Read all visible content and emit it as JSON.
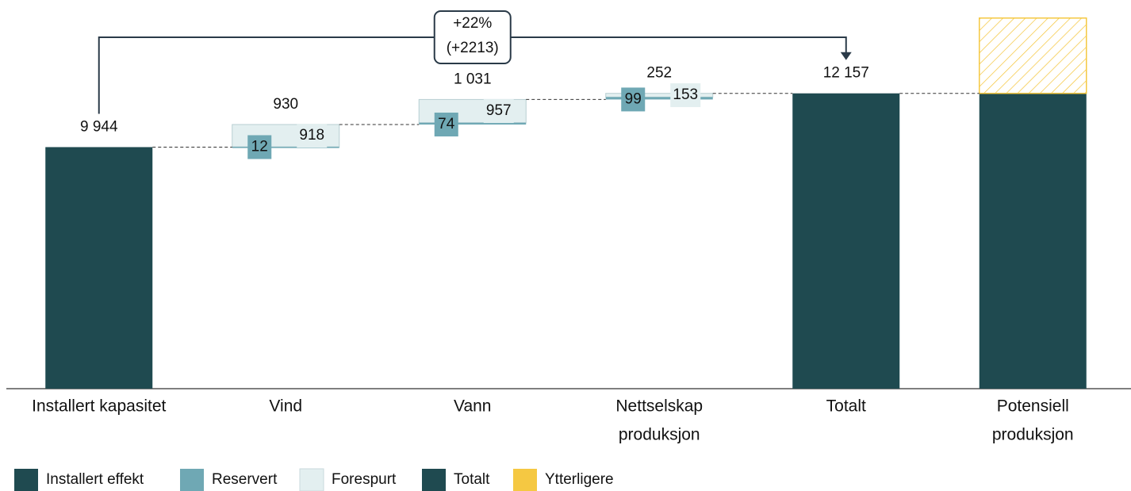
{
  "chart_data": {
    "type": "waterfall",
    "categories": [
      [
        "Installert kapasitet"
      ],
      [
        "Vind"
      ],
      [
        "Vann"
      ],
      [
        "Nettselskap",
        "produksjon"
      ],
      [
        "Totalt"
      ],
      [
        "Potensiell",
        "produksjon"
      ]
    ],
    "series": [
      {
        "name": "Installert effekt",
        "color": "#1f4a50",
        "values": [
          9944,
          null,
          null,
          null,
          null,
          null
        ],
        "value_labels": [
          "9 944",
          null,
          null,
          null,
          null,
          null
        ]
      },
      {
        "name": "Reservert",
        "color": "#6fa8b4",
        "values": [
          null,
          12,
          74,
          99,
          null,
          null
        ]
      },
      {
        "name": "Forespurt",
        "color": "#e3eff0",
        "values": [
          null,
          918,
          957,
          153,
          null,
          null
        ]
      },
      {
        "name": "Totalt",
        "color": "#1f4a50",
        "values": [
          null,
          null,
          null,
          null,
          12157,
          12157
        ],
        "value_labels": [
          null,
          null,
          null,
          null,
          "12 157",
          null
        ]
      },
      {
        "name": "Ytterligere",
        "color": "#f5c842",
        "values": [
          null,
          null,
          null,
          null,
          null,
          3100
        ],
        "hatch": true
      }
    ],
    "step_totals": [
      null,
      930,
      1031,
      252,
      null,
      null
    ],
    "step_total_labels": [
      null,
      "930",
      "1 031",
      "252",
      null,
      null
    ],
    "annotation": [
      "+22%",
      "(+2213)"
    ],
    "ylim": [
      0,
      16000
    ]
  }
}
